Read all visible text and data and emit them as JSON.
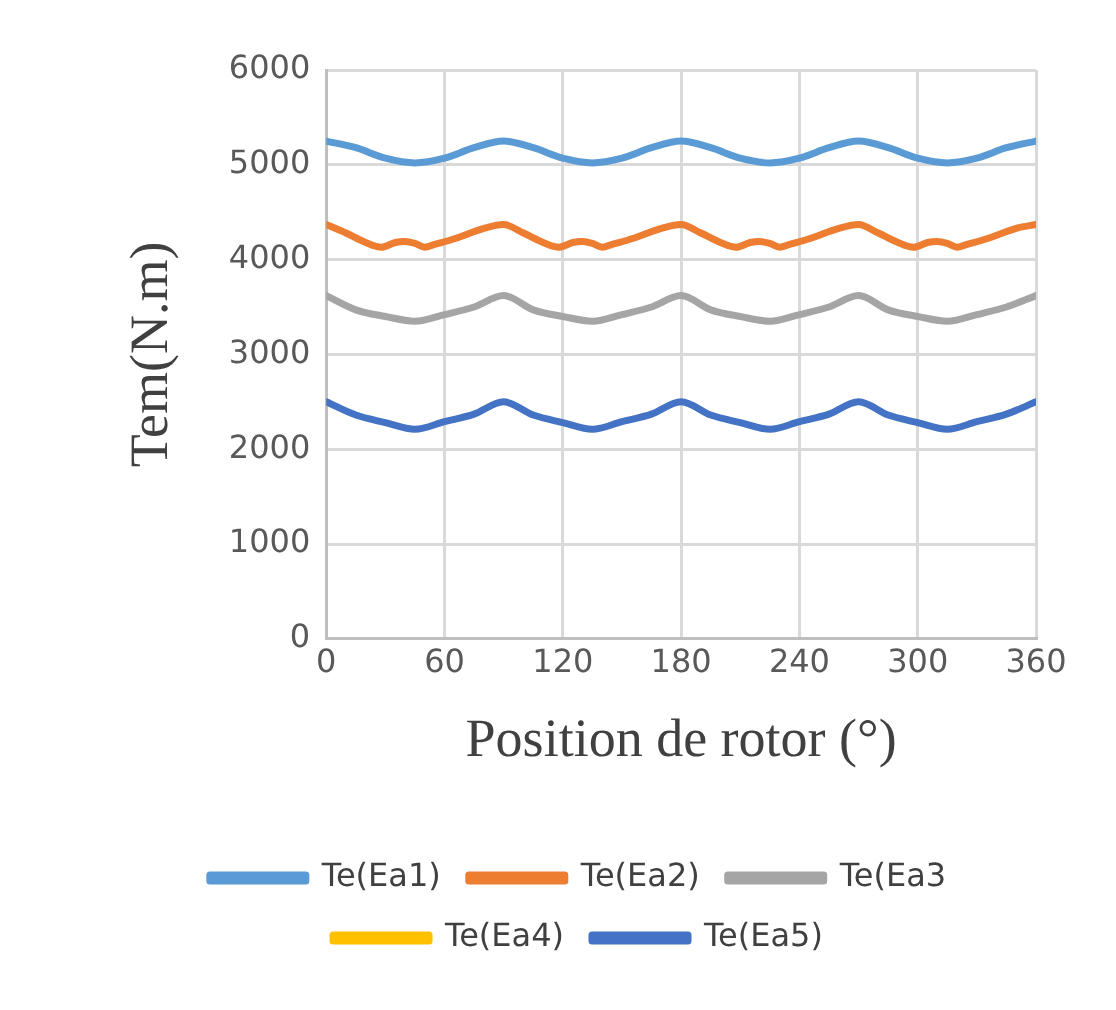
{
  "chart_data": {
    "type": "line",
    "xlabel": "Position de rotor (°)",
    "ylabel": "Tem(N.m)",
    "xlim": [
      0,
      360
    ],
    "xticks": [
      0,
      60,
      120,
      180,
      240,
      300,
      360
    ],
    "ylim": [
      0,
      6000
    ],
    "yticks": [
      0,
      1000,
      2000,
      3000,
      4000,
      5000,
      6000
    ],
    "grid": true,
    "legend": "bottom",
    "marker": "none",
    "line_style": "solid",
    "series": [
      {
        "name": "Te(Ea1)",
        "color": "#5b9bd5",
        "x": [
          0,
          15,
          30,
          45,
          60,
          75,
          90,
          105,
          120,
          135,
          150,
          165,
          180,
          195,
          210,
          225,
          240,
          255,
          270,
          285,
          300,
          315,
          330,
          345,
          360
        ],
        "values": [
          5250,
          5180,
          5070,
          5020,
          5070,
          5180,
          5250,
          5180,
          5070,
          5020,
          5070,
          5180,
          5250,
          5180,
          5070,
          5020,
          5070,
          5180,
          5250,
          5180,
          5070,
          5020,
          5070,
          5180,
          5250
        ]
      },
      {
        "name": "Te(Ea2)",
        "color": "#ed7d31",
        "x": [
          0,
          10,
          20,
          28,
          35,
          40,
          45,
          50,
          55,
          65,
          80,
          90,
          100,
          110,
          118,
          125,
          130,
          135,
          140,
          145,
          155,
          170,
          180,
          190,
          200,
          208,
          215,
          220,
          225,
          230,
          235,
          245,
          260,
          270,
          280,
          290,
          298,
          305,
          310,
          315,
          320,
          325,
          335,
          350,
          360
        ],
        "values": [
          4370,
          4280,
          4180,
          4130,
          4180,
          4190,
          4170,
          4130,
          4160,
          4220,
          4330,
          4370,
          4280,
          4180,
          4130,
          4180,
          4190,
          4170,
          4130,
          4160,
          4220,
          4330,
          4370,
          4280,
          4180,
          4130,
          4180,
          4190,
          4170,
          4130,
          4160,
          4220,
          4330,
          4370,
          4280,
          4180,
          4130,
          4180,
          4190,
          4170,
          4130,
          4160,
          4220,
          4330,
          4370
        ]
      },
      {
        "name": "Te(Ea3",
        "color": "#a5a5a5",
        "x": [
          0,
          15,
          30,
          45,
          60,
          75,
          90,
          105,
          120,
          135,
          150,
          165,
          180,
          195,
          210,
          225,
          240,
          255,
          270,
          285,
          300,
          315,
          330,
          345,
          360
        ],
        "values": [
          3620,
          3470,
          3400,
          3350,
          3420,
          3500,
          3620,
          3470,
          3400,
          3350,
          3420,
          3500,
          3620,
          3470,
          3400,
          3350,
          3420,
          3500,
          3620,
          3470,
          3400,
          3350,
          3420,
          3500,
          3620
        ]
      },
      {
        "name": "Te(Ea4)",
        "color": "#ffc000"
      },
      {
        "name": "Te(Ea5)",
        "color": "#4472c4",
        "x": [
          0,
          15,
          30,
          45,
          60,
          75,
          90,
          105,
          120,
          135,
          150,
          165,
          180,
          195,
          210,
          225,
          240,
          255,
          270,
          285,
          300,
          315,
          330,
          345,
          360
        ],
        "values": [
          2500,
          2360,
          2280,
          2210,
          2290,
          2370,
          2500,
          2360,
          2280,
          2210,
          2290,
          2370,
          2500,
          2360,
          2280,
          2210,
          2290,
          2370,
          2500,
          2360,
          2280,
          2210,
          2290,
          2370,
          2500
        ]
      }
    ]
  }
}
